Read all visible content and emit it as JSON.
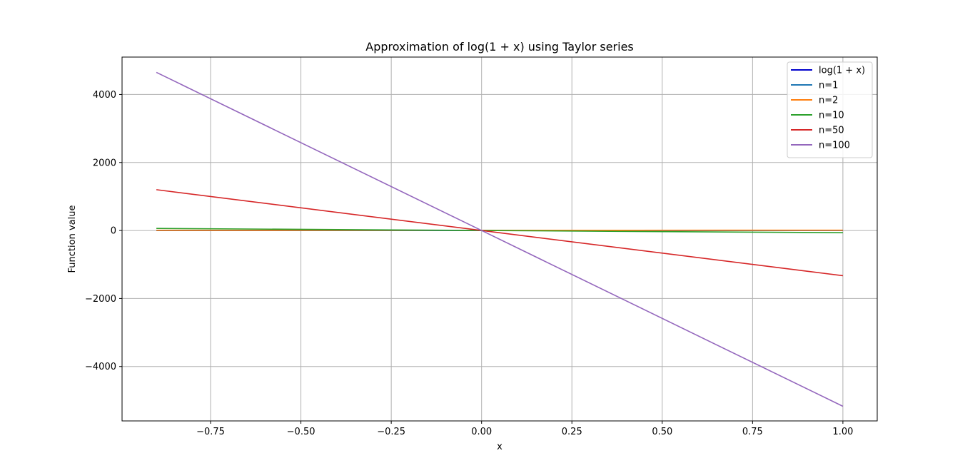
{
  "chart_data": {
    "type": "line",
    "title": "Approximation of log(1 + x) using Taylor series",
    "xlabel": "x",
    "ylabel": "Function value",
    "xlim": [
      -0.995,
      1.095
    ],
    "ylim": [
      -5600,
      5100
    ],
    "xticks": [
      -0.75,
      -0.5,
      -0.25,
      0.0,
      0.25,
      0.5,
      0.75,
      1.0
    ],
    "xtick_labels": [
      "−0.75",
      "−0.50",
      "−0.25",
      "0.00",
      "0.25",
      "0.50",
      "0.75",
      "1.00"
    ],
    "yticks": [
      -4000,
      -2000,
      0,
      2000,
      4000
    ],
    "ytick_labels": [
      "−4000",
      "−2000",
      "0",
      "2000",
      "4000"
    ],
    "grid": true,
    "legend_position": "top-right",
    "series": [
      {
        "name": "log(1 + x)",
        "color": "#0000cc",
        "x": [
          -0.9,
          1.0
        ],
        "y": [
          -2.3,
          0.69
        ]
      },
      {
        "name": "n=1",
        "color": "#1f77b4",
        "x": [
          -0.9,
          1.0
        ],
        "y": [
          -0.9,
          1.0
        ]
      },
      {
        "name": "n=2",
        "color": "#ff7f0e",
        "x": [
          -0.9,
          1.0
        ],
        "y": [
          5,
          8
        ]
      },
      {
        "name": "n=10",
        "color": "#2ca02c",
        "x": [
          -0.9,
          0.0,
          1.0
        ],
        "y": [
          60,
          0,
          -65
        ]
      },
      {
        "name": "n=50",
        "color": "#d62728",
        "x": [
          -0.9,
          0.0,
          1.0
        ],
        "y": [
          1200,
          0,
          -1330
        ]
      },
      {
        "name": "n=100",
        "color": "#9467bd",
        "x": [
          -0.9,
          0.0,
          1.0
        ],
        "y": [
          4650,
          0,
          -5170
        ]
      }
    ]
  }
}
